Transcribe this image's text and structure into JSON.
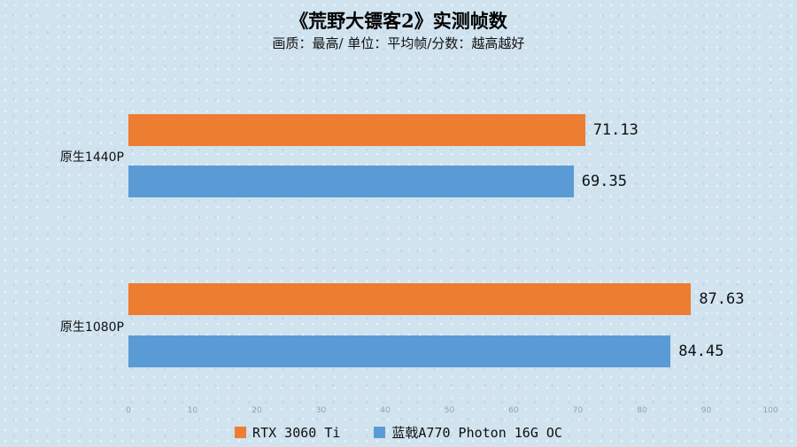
{
  "chart_data": {
    "type": "bar",
    "orientation": "horizontal",
    "title": "《荒野大镖客2》实测帧数",
    "subtitle": "画质：最高/ 单位：平均帧/分数：越高越好",
    "categories": [
      "原生1440P",
      "原生1080P"
    ],
    "series": [
      {
        "name": "RTX 3060 Ti",
        "color": "#ED7D31",
        "values": [
          71.13,
          87.63
        ]
      },
      {
        "name": "蓝戟A770 Photon 16G OC",
        "color": "#5B9BD5",
        "values": [
          69.35,
          84.45
        ]
      }
    ],
    "xlim": [
      0,
      100
    ],
    "x_ticks": [
      0,
      10,
      20,
      30,
      40,
      50,
      60,
      70,
      80,
      90,
      100
    ],
    "value_label_decimals": 2,
    "legend_position": "bottom",
    "grid": false,
    "background_color": "#d0e3ef"
  }
}
